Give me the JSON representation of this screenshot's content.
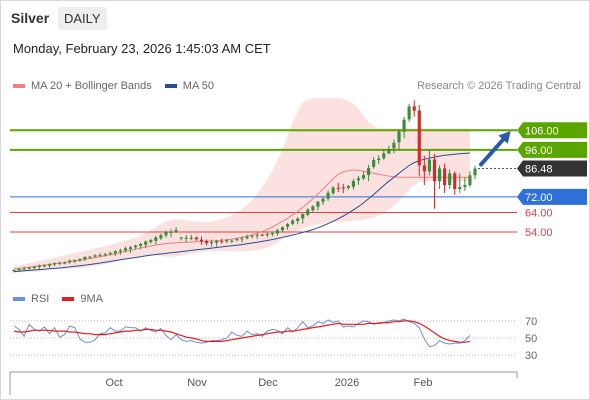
{
  "header": {
    "title": "Silver",
    "timeframe": "DAILY",
    "datetime": "Monday, February 23, 2026 1:45:03 AM CET"
  },
  "credit": "Research © 2026 Trading Central",
  "legend": {
    "price": [
      {
        "name": "MA 20 + Bollinger Bands",
        "color": "#f08080"
      },
      {
        "name": "MA 50",
        "color": "#2b4d8f"
      }
    ],
    "rsi": [
      {
        "name": "RSI",
        "color": "#6b8fd8"
      },
      {
        "name": "9MA",
        "color": "#e02020"
      }
    ]
  },
  "chart_data": {
    "type": "candlestick",
    "x_labels": [
      "Oct",
      "Nov",
      "Dec",
      "2026",
      "Feb"
    ],
    "candles": [
      [
        34.0,
        35.0,
        34.6,
        33.4
      ],
      [
        34.4,
        35.6,
        35.1,
        33.8
      ],
      [
        34.8,
        36.2,
        35.3,
        34.6
      ],
      [
        35.2,
        36.3,
        35.8,
        34.8
      ],
      [
        35.6,
        36.7,
        36.3,
        34.4
      ],
      [
        36.1,
        37.4,
        36.8,
        34.9
      ],
      [
        36.4,
        37.5,
        37.0,
        36.0
      ],
      [
        36.8,
        38.0,
        37.6,
        35.7
      ],
      [
        37.4,
        38.5,
        38.1,
        36.6
      ],
      [
        37.9,
        38.8,
        38.3,
        37.1
      ],
      [
        38.1,
        39.0,
        38.4,
        37.5
      ],
      [
        38.6,
        39.9,
        39.4,
        37.7
      ],
      [
        39.1,
        40.0,
        39.7,
        38.1
      ],
      [
        39.7,
        40.6,
        40.3,
        38.8
      ],
      [
        40.1,
        41.7,
        41.2,
        39.2
      ],
      [
        40.9,
        41.8,
        41.4,
        40.4
      ],
      [
        41.4,
        42.7,
        42.1,
        41.1
      ],
      [
        42.0,
        43.1,
        42.2,
        41.4
      ],
      [
        42.3,
        43.4,
        42.7,
        41.5
      ],
      [
        42.8,
        44.0,
        43.3,
        41.9
      ],
      [
        43.2,
        44.8,
        44.2,
        41.8
      ],
      [
        44.0,
        45.5,
        44.6,
        42.3
      ],
      [
        44.6,
        46.5,
        45.7,
        43.7
      ],
      [
        45.3,
        46.9,
        46.2,
        43.4
      ],
      [
        46.2,
        47.6,
        47.1,
        45.1
      ],
      [
        46.9,
        48.6,
        47.9,
        45.2
      ],
      [
        47.5,
        49.7,
        49.2,
        45.8
      ],
      [
        48.8,
        50.5,
        49.9,
        48.2
      ],
      [
        49.5,
        52.1,
        51.3,
        47.7
      ],
      [
        50.8,
        53.3,
        52.4,
        49.9
      ],
      [
        52.3,
        54.8,
        54.0,
        51.2
      ],
      [
        53.7,
        55.5,
        54.1,
        51.2
      ],
      [
        54.3,
        56.5,
        55.0,
        53.4
      ],
      [
        50.8,
        51.5,
        51.2,
        49.7
      ],
      [
        51.0,
        52.4,
        51.1,
        48.6
      ],
      [
        50.5,
        52.6,
        51.1,
        49.8
      ],
      [
        51.2,
        51.6,
        50.3,
        49.5
      ],
      [
        50.1,
        51.8,
        49.2,
        47.4
      ],
      [
        49.4,
        50.2,
        48.3,
        47.2
      ],
      [
        48.4,
        50.1,
        48.8,
        46.6
      ],
      [
        48.6,
        50.0,
        49.5,
        46.5
      ],
      [
        49.3,
        50.6,
        48.8,
        48.1
      ],
      [
        49.2,
        50.5,
        49.8,
        48.3
      ],
      [
        49.6,
        50.1,
        49.6,
        48.2
      ],
      [
        49.8,
        51.2,
        50.4,
        49.3
      ],
      [
        50.4,
        51.7,
        50.8,
        48.7
      ],
      [
        50.8,
        52.7,
        51.7,
        50.2
      ],
      [
        51.6,
        52.7,
        52.2,
        50.8
      ],
      [
        52.2,
        53.3,
        52.6,
        50.5
      ],
      [
        52.6,
        53.3,
        52.5,
        52.0
      ],
      [
        52.4,
        53.7,
        53.1,
        51.3
      ],
      [
        52.9,
        54.1,
        53.5,
        51.8
      ],
      [
        53.3,
        55.7,
        54.9,
        52.2
      ],
      [
        55.0,
        56.9,
        56.5,
        53.9
      ],
      [
        56.7,
        58.6,
        58.1,
        55.1
      ],
      [
        58.2,
        60.5,
        59.9,
        57.5
      ],
      [
        59.7,
        61.5,
        60.9,
        58.0
      ],
      [
        61.0,
        63.6,
        63.2,
        58.3
      ],
      [
        62.8,
        66.2,
        65.4,
        62.1
      ],
      [
        65.2,
        67.7,
        67.1,
        64.3
      ],
      [
        67.0,
        69.9,
        69.5,
        65.1
      ],
      [
        69.5,
        71.7,
        71.1,
        67.9
      ],
      [
        71.0,
        75.3,
        74.1,
        69.9
      ],
      [
        73.9,
        77.5,
        76.7,
        72.9
      ],
      [
        76.6,
        79.2,
        76.4,
        74.5
      ],
      [
        76.8,
        78.6,
        76.3,
        73.9
      ],
      [
        76.6,
        78.1,
        77.5,
        75.6
      ],
      [
        77.1,
        81.1,
        80.1,
        75.7
      ],
      [
        80.4,
        82.6,
        81.4,
        78.2
      ],
      [
        81.4,
        84.8,
        83.1,
        80.6
      ],
      [
        83.1,
        88.4,
        86.7,
        80.0
      ],
      [
        87.3,
        92.3,
        90.8,
        86.4
      ],
      [
        90.8,
        93.2,
        91.6,
        88.7
      ],
      [
        91.8,
        96.4,
        94.2,
        90.7
      ],
      [
        94.1,
        98.2,
        96.4,
        94.0
      ],
      [
        96.8,
        101.2,
        99.6,
        94.3
      ],
      [
        99.9,
        106.5,
        105.5,
        96.3
      ],
      [
        105.3,
        112.9,
        111.4,
        101.9
      ],
      [
        111.6,
        119.5,
        118.2,
        110.4
      ],
      [
        118.3,
        121.4,
        116.0,
        112.9
      ],
      [
        116.1,
        119.0,
        88.0,
        82.4
      ],
      [
        88.0,
        93.0,
        85.0,
        78.0
      ],
      [
        85.0,
        96.0,
        91.0,
        83.0
      ],
      [
        91.0,
        94.0,
        80.0,
        66.0
      ],
      [
        80.0,
        88.0,
        86.5,
        76.0
      ],
      [
        86.5,
        89.0,
        78.0,
        74.0
      ],
      [
        78.0,
        86.0,
        84.0,
        76.0
      ],
      [
        84.0,
        85.0,
        76.0,
        73.0
      ],
      [
        76.0,
        84.0,
        77.0,
        74.0
      ],
      [
        77.0,
        82.0,
        78.0,
        75.0
      ],
      [
        78.0,
        85.0,
        83.0,
        77.0
      ],
      [
        83.0,
        88.0,
        86.48,
        81.0
      ]
    ],
    "ma20": [
      35.2,
      35.5,
      35.8,
      36.1,
      36.4,
      36.8,
      37.1,
      37.4,
      37.8,
      38.1,
      38.4,
      38.8,
      39.2,
      39.5,
      40.0,
      40.5,
      40.9,
      41.4,
      41.9,
      42.4,
      42.9,
      43.5,
      44.1,
      44.6,
      45.2,
      45.9,
      46.4,
      46.9,
      47.4,
      47.8,
      48.1,
      48.3,
      48.5,
      48.7,
      48.8,
      48.9,
      49.0,
      49.1,
      49.3,
      49.4,
      49.6,
      49.8,
      50.1,
      50.4,
      50.8,
      51.3,
      51.9,
      52.6,
      53.4,
      54.3,
      55.4,
      56.6,
      58.0,
      59.5,
      61.1,
      62.8,
      64.6,
      66.6,
      68.8,
      71.1,
      73.5,
      76.0,
      78.6,
      81.3,
      83.5,
      84.8,
      85.4,
      85.7,
      85.5,
      85.1,
      84.6,
      84.0,
      83.5,
      83.0,
      82.6,
      82.3,
      82.1,
      82.0,
      82.0,
      82.0,
      82.0,
      82.0,
      82.0,
      82.0,
      82.0,
      82.0,
      82.0,
      82.0,
      82.0,
      82.0,
      82.0
    ],
    "bb_upper": [
      36.5,
      37.0,
      37.5,
      38.0,
      38.6,
      39.2,
      39.7,
      40.3,
      40.9,
      41.5,
      42.1,
      42.7,
      43.3,
      43.8,
      44.4,
      45.0,
      45.6,
      46.2,
      46.8,
      47.4,
      48.1,
      48.8,
      49.5,
      50.3,
      51.2,
      52.3,
      53.6,
      55.1,
      56.6,
      58.2,
      59.5,
      60.2,
      60.5,
      60.3,
      60.0,
      59.7,
      59.4,
      59.2,
      59.2,
      59.4,
      59.9,
      60.6,
      61.5,
      62.6,
      64.0,
      65.8,
      68.0,
      70.6,
      73.6,
      77.0,
      80.9,
      85.5,
      90.7,
      96.5,
      103.0,
      109.8,
      116.0,
      120.0,
      121.5,
      122.2,
      122.5,
      122.5,
      122.5,
      122.5,
      122.5,
      122.0,
      121.0,
      119.5,
      117.0,
      114.0,
      110.0,
      108.0,
      107.0,
      107.0,
      107.0,
      107.0,
      107.0,
      107.0,
      107.0,
      107.0,
      107.0,
      107.0,
      107.0,
      107.0,
      107.0,
      107.0,
      107.0,
      107.0,
      107.0,
      107.0,
      107.0
    ],
    "bb_lower": [
      33.2,
      33.5,
      33.6,
      33.7,
      33.8,
      34.0,
      34.3,
      34.6,
      34.9,
      35.1,
      35.2,
      35.3,
      35.4,
      35.5,
      35.8,
      36.2,
      36.7,
      37.1,
      37.6,
      38.1,
      38.7,
      39.3,
      39.9,
      40.5,
      41.1,
      41.6,
      41.9,
      42.0,
      42.0,
      41.8,
      41.4,
      41.3,
      41.6,
      42.0,
      42.5,
      43.0,
      43.4,
      43.8,
      44.1,
      44.3,
      44.4,
      44.4,
      44.3,
      44.2,
      44.1,
      44.1,
      44.2,
      44.4,
      44.8,
      45.4,
      46.2,
      47.3,
      48.7,
      50.3,
      51.9,
      53.5,
      54.8,
      55.8,
      56.8,
      57.5,
      58.0,
      58.5,
      58.8,
      59.0,
      59.2,
      59.4,
      59.6,
      59.8,
      60.0,
      60.3,
      60.8,
      61.5,
      62.5,
      63.8,
      65.5,
      67.5,
      69.8,
      72.5,
      75.5,
      78.0,
      79.5,
      80.0,
      80.0,
      80.0,
      80.0,
      80.0,
      80.0,
      80.0,
      80.0,
      80.0,
      80.0
    ],
    "ma50": [
      33.8,
      34.0,
      34.2,
      34.4,
      34.6,
      34.8,
      35.0,
      35.2,
      35.4,
      35.6,
      35.9,
      36.2,
      36.5,
      36.8,
      37.1,
      37.4,
      37.8,
      38.2,
      38.6,
      39.0,
      39.4,
      39.8,
      40.2,
      40.6,
      41.0,
      41.4,
      41.8,
      42.2,
      42.5,
      42.8,
      43.1,
      43.4,
      43.7,
      44.0,
      44.3,
      44.6,
      44.9,
      45.2,
      45.5,
      45.8,
      46.1,
      46.4,
      46.7,
      47.0,
      47.3,
      47.6,
      48.0,
      48.4,
      48.8,
      49.2,
      49.7,
      50.2,
      50.7,
      51.3,
      51.9,
      52.5,
      53.1,
      53.8,
      54.5,
      55.3,
      56.2,
      57.2,
      58.3,
      59.5,
      60.8,
      62.2,
      63.7,
      65.3,
      67.0,
      68.9,
      71.0,
      73.2,
      75.5,
      77.8,
      80.0,
      82.0,
      84.0,
      86.0,
      88.0,
      89.5,
      90.5,
      91.2,
      91.8,
      92.3,
      92.8,
      93.2,
      93.5,
      93.8,
      94.0,
      94.2,
      94.4
    ],
    "forecast_arrow": {
      "from": 86.48,
      "to": 106.0
    },
    "price_levels": [
      {
        "label": "106.00",
        "value": 106.0,
        "kind": "resistance",
        "color": "#5aa500"
      },
      {
        "label": "96.00",
        "value": 96.0,
        "kind": "resistance",
        "color": "#5aa500"
      },
      {
        "label": "86.48",
        "value": 86.48,
        "kind": "last",
        "color": "#333333"
      },
      {
        "label": "72.00",
        "value": 72.0,
        "kind": "pivot",
        "color": "#2f6fd8"
      },
      {
        "label": "64.00",
        "value": 64.0,
        "kind": "support",
        "color": "#e04040"
      },
      {
        "label": "54.00",
        "value": 54.0,
        "kind": "support",
        "color": "#e04040"
      }
    ],
    "rsi": {
      "levels": [
        70,
        50,
        30
      ],
      "ylim": [
        15,
        85
      ],
      "rsi": [
        64,
        60,
        52,
        66,
        60,
        58,
        63,
        55,
        62,
        51,
        54,
        64,
        62,
        49,
        45,
        45,
        48,
        55,
        56,
        62,
        58,
        58,
        63,
        62,
        62,
        58,
        62,
        59,
        57,
        61,
        53,
        48,
        54,
        48,
        46,
        47,
        45,
        44,
        45,
        47,
        47,
        48,
        50,
        57,
        53,
        52,
        58,
        54,
        55,
        52,
        58,
        60,
        59,
        55,
        62,
        57,
        62,
        69,
        62,
        64,
        69,
        67,
        71,
        68,
        70,
        63,
        64,
        63,
        67,
        70,
        69,
        66,
        68,
        68,
        70,
        71,
        70,
        72,
        69,
        67,
        62,
        49,
        40,
        41,
        47,
        44,
        43,
        44,
        44,
        47,
        53
      ],
      "ma9": [
        58,
        57,
        57,
        58,
        59,
        59,
        59,
        59,
        58,
        58,
        58,
        57,
        57,
        56,
        55,
        55,
        54,
        54,
        54,
        55,
        56,
        57,
        58,
        58,
        59,
        59,
        60,
        60,
        59,
        59,
        58,
        57,
        55,
        53,
        51,
        50,
        49,
        47,
        46,
        46,
        46,
        46,
        47,
        48,
        49,
        50,
        51,
        52,
        53,
        54,
        55,
        56,
        57,
        57,
        58,
        58,
        59,
        60,
        61,
        62,
        63,
        64,
        65,
        66,
        67,
        66,
        66,
        66,
        66,
        66,
        67,
        67,
        67,
        68,
        68,
        69,
        69,
        70,
        70,
        69,
        67,
        64,
        60,
        56,
        52,
        49,
        47,
        46,
        45,
        45,
        46
      ]
    }
  }
}
